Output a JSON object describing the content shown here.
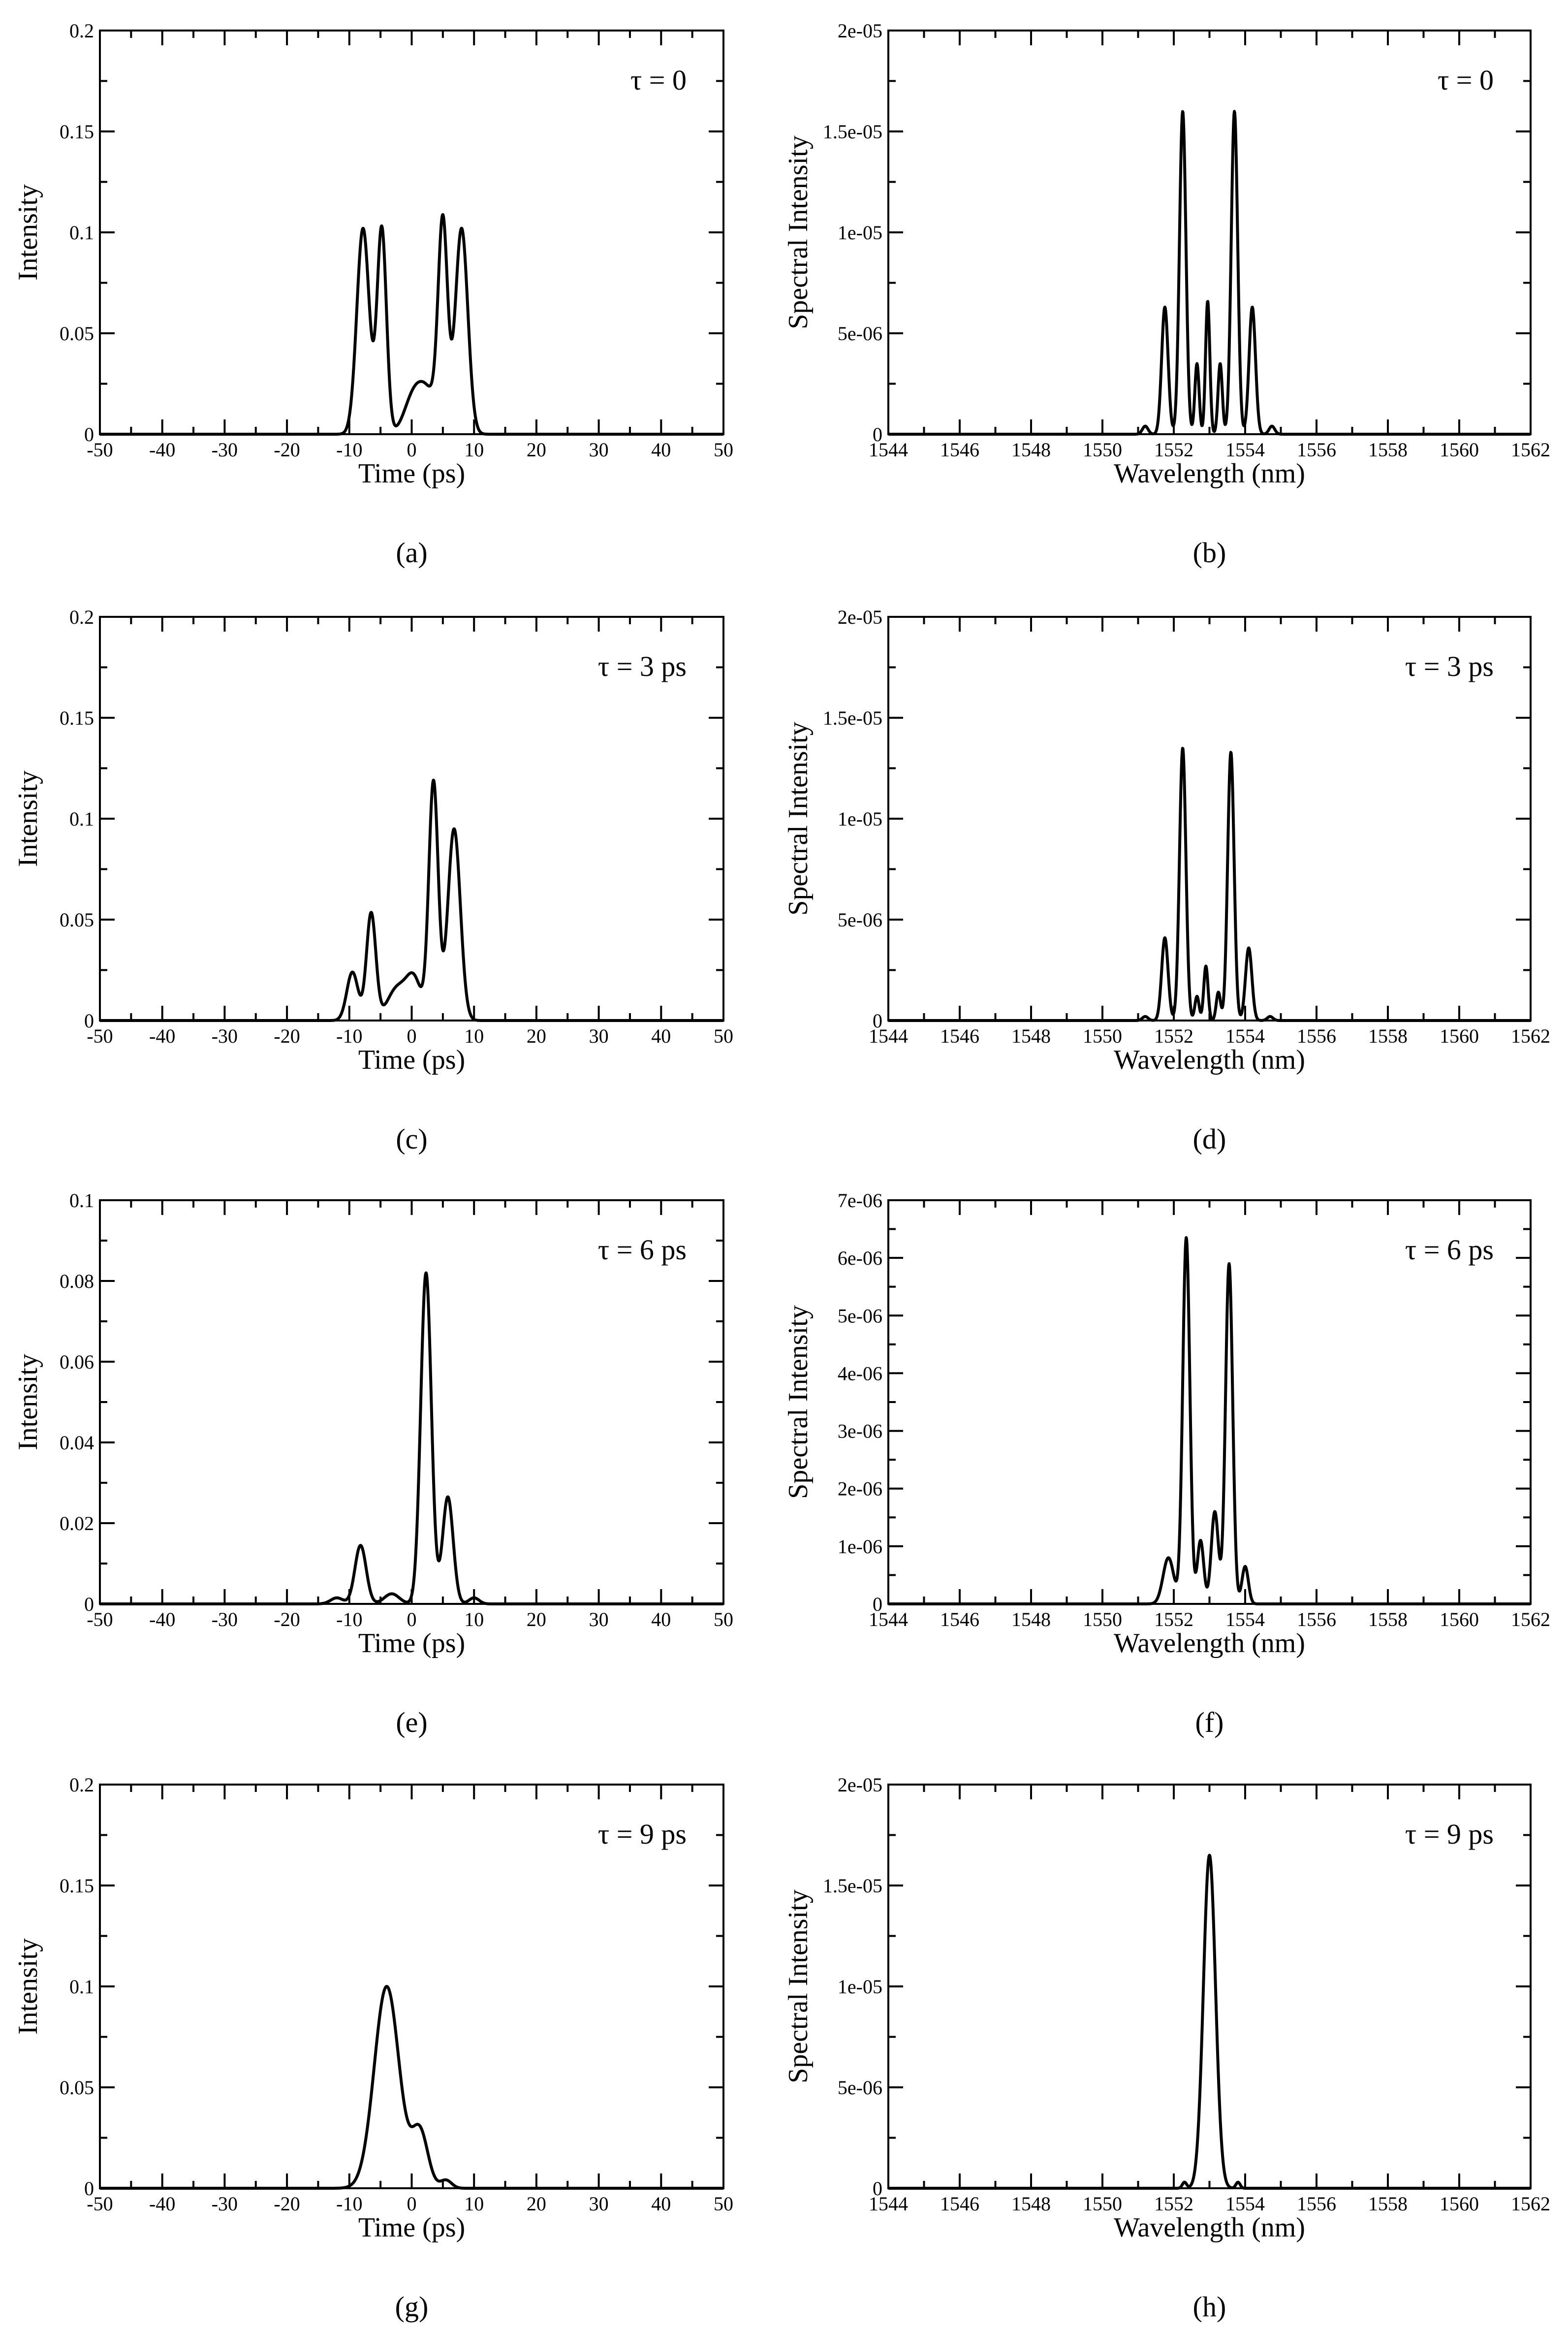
{
  "chart_data": [
    {
      "id": "a",
      "type": "line",
      "panel_label": "(a)",
      "annotation": "τ = 0",
      "xlabel": "Time (ps)",
      "ylabel": "Intensity",
      "xlim": [
        -50,
        50
      ],
      "ylim": [
        0,
        0.2
      ],
      "x_ticks": [
        -50,
        -40,
        -30,
        -20,
        -10,
        0,
        10,
        20,
        30,
        40,
        50
      ],
      "x_tick_labels": [
        "-50",
        "-40",
        "-30",
        "-20",
        "-10",
        "0",
        "10",
        "20",
        "30",
        "40",
        "50"
      ],
      "y_ticks": [
        0,
        0.05,
        0.1,
        0.15,
        0.2
      ],
      "y_tick_labels": [
        "0",
        "0.05",
        "0.1",
        "0.15",
        "0.2"
      ],
      "series": [
        {
          "name": "intensity",
          "peaks": [
            [
              -7.8,
              0.102,
              1.0
            ],
            [
              -4.8,
              0.102,
              0.75
            ],
            [
              0.3,
              0.018,
              1.5
            ],
            [
              2.7,
              0.018,
              1.5
            ],
            [
              5.0,
              0.102,
              0.75
            ],
            [
              8.0,
              0.102,
              1.0
            ]
          ]
        }
      ]
    },
    {
      "id": "b",
      "type": "line",
      "panel_label": "(b)",
      "annotation": "τ = 0",
      "xlabel": "Wavelength (nm)",
      "ylabel": "Spectral Intensity",
      "xlim": [
        1544,
        1562
      ],
      "ylim": [
        0,
        2e-05
      ],
      "x_ticks": [
        1544,
        1546,
        1548,
        1550,
        1552,
        1554,
        1556,
        1558,
        1560,
        1562
      ],
      "x_tick_labels": [
        "1544",
        "1546",
        "1548",
        "1550",
        "1552",
        "1554",
        "1556",
        "1558",
        "1560",
        "1562"
      ],
      "y_ticks": [
        0,
        5e-06,
        1e-05,
        1.5e-05,
        2e-05
      ],
      "y_tick_labels": [
        "0",
        "5e-06",
        "1e-05",
        "1.5e-05",
        "2e-05"
      ],
      "series": [
        {
          "name": "spectrum",
          "peaks": [
            [
              1551.2,
              4e-07,
              0.08
            ],
            [
              1551.75,
              6.3e-06,
              0.09
            ],
            [
              1552.25,
              1.6e-05,
              0.09
            ],
            [
              1552.65,
              3.5e-06,
              0.06
            ],
            [
              1552.95,
              6.6e-06,
              0.06
            ],
            [
              1553.3,
              3.5e-06,
              0.06
            ],
            [
              1553.7,
              1.6e-05,
              0.09
            ],
            [
              1554.2,
              6.3e-06,
              0.09
            ],
            [
              1554.75,
              4e-07,
              0.08
            ]
          ]
        }
      ]
    },
    {
      "id": "c",
      "type": "line",
      "panel_label": "(c)",
      "annotation": "τ = 3 ps",
      "xlabel": "Time (ps)",
      "ylabel": "Intensity",
      "xlim": [
        -50,
        50
      ],
      "ylim": [
        0,
        0.2
      ],
      "x_ticks": [
        -50,
        -40,
        -30,
        -20,
        -10,
        0,
        10,
        20,
        30,
        40,
        50
      ],
      "x_tick_labels": [
        "-50",
        "-40",
        "-30",
        "-20",
        "-10",
        "0",
        "10",
        "20",
        "30",
        "40",
        "50"
      ],
      "y_ticks": [
        0,
        0.05,
        0.1,
        0.15,
        0.2
      ],
      "y_tick_labels": [
        "0",
        "0.05",
        "0.1",
        "0.15",
        "0.2"
      ],
      "series": [
        {
          "name": "intensity",
          "peaks": [
            [
              -9.5,
              0.024,
              0.9
            ],
            [
              -6.5,
              0.053,
              0.75
            ],
            [
              -2.3,
              0.016,
              1.6
            ],
            [
              0.4,
              0.019,
              1.2
            ],
            [
              3.5,
              0.118,
              0.75
            ],
            [
              6.8,
              0.095,
              1.0
            ]
          ]
        }
      ]
    },
    {
      "id": "d",
      "type": "line",
      "panel_label": "(d)",
      "annotation": "τ = 3 ps",
      "xlabel": "Wavelength (nm)",
      "ylabel": "Spectral Intensity",
      "xlim": [
        1544,
        1562
      ],
      "ylim": [
        0,
        2e-05
      ],
      "x_ticks": [
        1544,
        1546,
        1548,
        1550,
        1552,
        1554,
        1556,
        1558,
        1560,
        1562
      ],
      "x_tick_labels": [
        "1544",
        "1546",
        "1548",
        "1550",
        "1552",
        "1554",
        "1556",
        "1558",
        "1560",
        "1562"
      ],
      "y_ticks": [
        0,
        5e-06,
        1e-05,
        1.5e-05,
        2e-05
      ],
      "y_tick_labels": [
        "0",
        "5e-06",
        "1e-05",
        "1.5e-05",
        "2e-05"
      ],
      "series": [
        {
          "name": "spectrum",
          "peaks": [
            [
              1551.2,
              2e-07,
              0.08
            ],
            [
              1551.75,
              4.1e-06,
              0.09
            ],
            [
              1552.25,
              1.35e-05,
              0.09
            ],
            [
              1552.65,
              1.2e-06,
              0.06
            ],
            [
              1552.9,
              2.7e-06,
              0.06
            ],
            [
              1553.25,
              1.4e-06,
              0.06
            ],
            [
              1553.6,
              1.33e-05,
              0.09
            ],
            [
              1554.1,
              3.6e-06,
              0.09
            ],
            [
              1554.7,
              2e-07,
              0.08
            ]
          ]
        }
      ]
    },
    {
      "id": "e",
      "type": "line",
      "panel_label": "(e)",
      "annotation": "τ = 6 ps",
      "xlabel": "Time (ps)",
      "ylabel": "Intensity",
      "xlim": [
        -50,
        50
      ],
      "ylim": [
        0,
        0.1
      ],
      "x_ticks": [
        -50,
        -40,
        -30,
        -20,
        -10,
        0,
        10,
        20,
        30,
        40,
        50
      ],
      "x_tick_labels": [
        "-50",
        "-40",
        "-30",
        "-20",
        "-10",
        "0",
        "10",
        "20",
        "30",
        "40",
        "50"
      ],
      "y_ticks": [
        0,
        0.02,
        0.04,
        0.06,
        0.08,
        0.1
      ],
      "y_tick_labels": [
        "0",
        "0.02",
        "0.04",
        "0.06",
        "0.08",
        "0.1"
      ],
      "series": [
        {
          "name": "intensity",
          "peaks": [
            [
              -12,
              0.0015,
              1.0
            ],
            [
              -8.2,
              0.0145,
              0.9
            ],
            [
              -3.2,
              0.0025,
              1.2
            ],
            [
              2.3,
              0.082,
              0.85
            ],
            [
              5.8,
              0.0265,
              0.85
            ],
            [
              10,
              0.0015,
              0.8
            ]
          ]
        }
      ]
    },
    {
      "id": "f",
      "type": "line",
      "panel_label": "(f)",
      "annotation": "τ = 6 ps",
      "xlabel": "Wavelength (nm)",
      "ylabel": "Spectral Intensity",
      "xlim": [
        1544,
        1562
      ],
      "ylim": [
        0,
        7e-06
      ],
      "x_ticks": [
        1544,
        1546,
        1548,
        1550,
        1552,
        1554,
        1556,
        1558,
        1560,
        1562
      ],
      "x_tick_labels": [
        "1544",
        "1546",
        "1548",
        "1550",
        "1552",
        "1554",
        "1556",
        "1558",
        "1560",
        "1562"
      ],
      "y_ticks": [
        0,
        1e-06,
        2e-06,
        3e-06,
        4e-06,
        5e-06,
        6e-06,
        7e-06
      ],
      "y_tick_labels": [
        "0",
        "1e-06",
        "2e-06",
        "3e-06",
        "4e-06",
        "5e-06",
        "6e-06",
        "7e-06"
      ],
      "series": [
        {
          "name": "spectrum",
          "peaks": [
            [
              1551.85,
              8e-07,
              0.15
            ],
            [
              1552.35,
              6.35e-06,
              0.1
            ],
            [
              1552.75,
              1.1e-06,
              0.09
            ],
            [
              1553.15,
              1.6e-06,
              0.1
            ],
            [
              1553.55,
              5.9e-06,
              0.1
            ],
            [
              1554.0,
              6.5e-07,
              0.09
            ]
          ]
        }
      ]
    },
    {
      "id": "g",
      "type": "line",
      "panel_label": "(g)",
      "annotation": "τ = 9 ps",
      "xlabel": "Time (ps)",
      "ylabel": "Intensity",
      "xlim": [
        -50,
        50
      ],
      "ylim": [
        0,
        0.2
      ],
      "x_ticks": [
        -50,
        -40,
        -30,
        -20,
        -10,
        0,
        10,
        20,
        30,
        40,
        50
      ],
      "x_tick_labels": [
        "-50",
        "-40",
        "-30",
        "-20",
        "-10",
        "0",
        "10",
        "20",
        "30",
        "40",
        "50"
      ],
      "y_ticks": [
        0,
        0.05,
        0.1,
        0.15,
        0.2
      ],
      "y_tick_labels": [
        "0",
        "0.05",
        "0.1",
        "0.15",
        "0.2"
      ],
      "series": [
        {
          "name": "intensity",
          "peaks": [
            [
              -4.0,
              0.1,
              2.0
            ],
            [
              1.3,
              0.028,
              1.3
            ],
            [
              5.5,
              0.004,
              0.9
            ]
          ]
        }
      ]
    },
    {
      "id": "h",
      "type": "line",
      "panel_label": "(h)",
      "annotation": "τ = 9 ps",
      "xlabel": "Wavelength (nm)",
      "ylabel": "Spectral Intensity",
      "xlim": [
        1544,
        1562
      ],
      "ylim": [
        0,
        2e-05
      ],
      "x_ticks": [
        1544,
        1546,
        1548,
        1550,
        1552,
        1554,
        1556,
        1558,
        1560,
        1562
      ],
      "x_tick_labels": [
        "1544",
        "1546",
        "1548",
        "1550",
        "1552",
        "1554",
        "1556",
        "1558",
        "1560",
        "1562"
      ],
      "y_ticks": [
        0,
        5e-06,
        1e-05,
        1.5e-05,
        2e-05
      ],
      "y_tick_labels": [
        "0",
        "5e-06",
        "1e-05",
        "1.5e-05",
        "2e-05"
      ],
      "series": [
        {
          "name": "spectrum",
          "peaks": [
            [
              1552.3,
              3e-07,
              0.06
            ],
            [
              1553.0,
              1.65e-05,
              0.17
            ],
            [
              1553.8,
              3e-07,
              0.06
            ]
          ]
        }
      ]
    }
  ]
}
